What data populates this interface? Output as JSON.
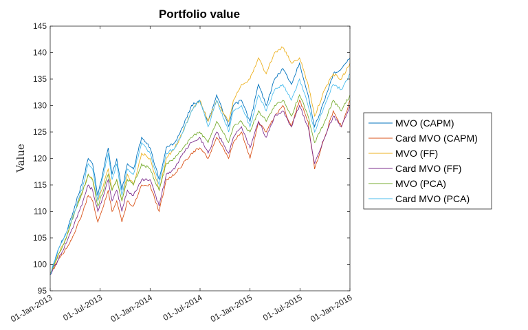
{
  "chart_data": {
    "type": "line",
    "title": "Portfolio value",
    "xlabel": "",
    "ylabel": "Value",
    "x_ticks": [
      "01-Jan-2013",
      "01-Jul-2013",
      "01-Jan-2014",
      "01-Jul-2014",
      "01-Jan-2015",
      "01-Jul-2015",
      "01-Jan-2016"
    ],
    "y_ticks": [
      95,
      100,
      105,
      110,
      115,
      120,
      125,
      130,
      135,
      140,
      145
    ],
    "xlim": [
      "2013-01-01",
      "2016-01-01"
    ],
    "ylim": [
      95,
      145
    ],
    "grid": false,
    "legend_position": "right",
    "series": [
      {
        "name": "MVO (CAPM)",
        "color": "#0072BD",
        "x": [
          "2013-01-01",
          "2013-02-01",
          "2013-03-01",
          "2013-04-01",
          "2013-05-01",
          "2013-05-20",
          "2013-06-05",
          "2013-06-24",
          "2013-07-15",
          "2013-08-01",
          "2013-08-15",
          "2013-09-01",
          "2013-09-20",
          "2013-10-10",
          "2013-11-01",
          "2013-12-01",
          "2014-01-01",
          "2014-02-03",
          "2014-03-01",
          "2014-04-01",
          "2014-05-01",
          "2014-06-01",
          "2014-07-01",
          "2014-08-01",
          "2014-09-01",
          "2014-10-15",
          "2014-11-01",
          "2014-12-01",
          "2015-01-01",
          "2015-02-01",
          "2015-03-01",
          "2015-04-01",
          "2015-05-01",
          "2015-06-01",
          "2015-07-01",
          "2015-08-01",
          "2015-08-25",
          "2015-10-01",
          "2015-11-01",
          "2015-12-01",
          "2016-01-01"
        ],
        "y": [
          98,
          103,
          106,
          111,
          116,
          120,
          119,
          113,
          118,
          122,
          117,
          120,
          114,
          119,
          118,
          124,
          122,
          116,
          122,
          123,
          126,
          130,
          131,
          127,
          132,
          126,
          130,
          131,
          127,
          134,
          130,
          135,
          137,
          134,
          138,
          132,
          126,
          131,
          136,
          137,
          139
        ]
      },
      {
        "name": "Card MVO (CAPM)",
        "color": "#D95319",
        "x": [
          "2013-01-01",
          "2013-02-01",
          "2013-03-01",
          "2013-04-01",
          "2013-05-01",
          "2013-05-20",
          "2013-06-05",
          "2013-06-24",
          "2013-07-15",
          "2013-08-01",
          "2013-08-15",
          "2013-09-01",
          "2013-09-20",
          "2013-10-10",
          "2013-11-01",
          "2013-12-01",
          "2014-01-01",
          "2014-02-03",
          "2014-03-01",
          "2014-04-01",
          "2014-05-01",
          "2014-06-01",
          "2014-07-01",
          "2014-08-01",
          "2014-09-01",
          "2014-10-15",
          "2014-11-01",
          "2014-12-01",
          "2015-01-01",
          "2015-02-01",
          "2015-03-01",
          "2015-04-01",
          "2015-05-01",
          "2015-06-01",
          "2015-07-01",
          "2015-08-01",
          "2015-08-25",
          "2015-10-01",
          "2015-11-01",
          "2015-12-01",
          "2016-01-01"
        ],
        "y": [
          98,
          101,
          103,
          106,
          110,
          113,
          112,
          108,
          111,
          114,
          110,
          112,
          108,
          112,
          111,
          115,
          115,
          110,
          116,
          117,
          119,
          121,
          122,
          120,
          124,
          120,
          123,
          125,
          120,
          127,
          125,
          128,
          130,
          126,
          131,
          127,
          118,
          124,
          129,
          126,
          131
        ]
      },
      {
        "name": "MVO (FF)",
        "color": "#EDB120",
        "x": [
          "2013-01-01",
          "2013-02-01",
          "2013-03-01",
          "2013-04-01",
          "2013-05-01",
          "2013-05-20",
          "2013-06-05",
          "2013-06-24",
          "2013-07-15",
          "2013-08-01",
          "2013-08-15",
          "2013-09-01",
          "2013-09-20",
          "2013-10-10",
          "2013-11-01",
          "2013-12-01",
          "2014-01-01",
          "2014-02-03",
          "2014-03-01",
          "2014-04-01",
          "2014-05-01",
          "2014-06-01",
          "2014-07-01",
          "2014-08-01",
          "2014-09-01",
          "2014-10-15",
          "2014-11-01",
          "2014-12-01",
          "2015-01-01",
          "2015-02-01",
          "2015-03-01",
          "2015-04-01",
          "2015-05-01",
          "2015-06-01",
          "2015-07-01",
          "2015-08-01",
          "2015-08-25",
          "2015-10-01",
          "2015-11-01",
          "2015-12-01",
          "2016-01-01"
        ],
        "y": [
          98,
          102,
          105,
          110,
          114,
          117,
          116,
          112,
          115,
          118,
          114,
          116,
          112,
          117,
          115,
          121,
          120,
          114,
          120,
          122,
          125,
          129,
          131,
          127,
          131,
          127,
          131,
          134,
          135,
          139,
          136,
          140,
          141,
          138,
          139,
          134,
          128,
          133,
          136,
          135,
          138
        ]
      },
      {
        "name": "Card MVO (FF)",
        "color": "#7E2F8E",
        "x": [
          "2013-01-01",
          "2013-02-01",
          "2013-03-01",
          "2013-04-01",
          "2013-05-01",
          "2013-05-20",
          "2013-06-05",
          "2013-06-24",
          "2013-07-15",
          "2013-08-01",
          "2013-08-15",
          "2013-09-01",
          "2013-09-20",
          "2013-10-10",
          "2013-11-01",
          "2013-12-01",
          "2014-01-01",
          "2014-02-03",
          "2014-03-01",
          "2014-04-01",
          "2014-05-01",
          "2014-06-01",
          "2014-07-01",
          "2014-08-01",
          "2014-09-01",
          "2014-10-15",
          "2014-11-01",
          "2014-12-01",
          "2015-01-01",
          "2015-02-01",
          "2015-03-01",
          "2015-04-01",
          "2015-05-01",
          "2015-06-01",
          "2015-07-01",
          "2015-08-01",
          "2015-08-25",
          "2015-10-01",
          "2015-11-01",
          "2015-12-01",
          "2016-01-01"
        ],
        "y": [
          98,
          101,
          104,
          108,
          112,
          115,
          114,
          110,
          113,
          116,
          112,
          114,
          110,
          114,
          113,
          116,
          116,
          111,
          117,
          118,
          121,
          123,
          124,
          121,
          125,
          121,
          124,
          126,
          122,
          127,
          124,
          128,
          129,
          126,
          130,
          126,
          119,
          124,
          128,
          126,
          130
        ]
      },
      {
        "name": "MVO (PCA)",
        "color": "#77AC30",
        "x": [
          "2013-01-01",
          "2013-02-01",
          "2013-03-01",
          "2013-04-01",
          "2013-05-01",
          "2013-05-20",
          "2013-06-05",
          "2013-06-24",
          "2013-07-15",
          "2013-08-01",
          "2013-08-15",
          "2013-09-01",
          "2013-09-20",
          "2013-10-10",
          "2013-11-01",
          "2013-12-01",
          "2014-01-01",
          "2014-02-03",
          "2014-03-01",
          "2014-04-01",
          "2014-05-01",
          "2014-06-01",
          "2014-07-01",
          "2014-08-01",
          "2014-09-01",
          "2014-10-15",
          "2014-11-01",
          "2014-12-01",
          "2015-01-01",
          "2015-02-01",
          "2015-03-01",
          "2015-04-01",
          "2015-05-01",
          "2015-06-01",
          "2015-07-01",
          "2015-08-01",
          "2015-08-25",
          "2015-10-01",
          "2015-11-01",
          "2015-12-01",
          "2016-01-01"
        ],
        "y": [
          98,
          102,
          105,
          110,
          114,
          117,
          116,
          111,
          114,
          117,
          114,
          116,
          112,
          116,
          115,
          119,
          118,
          114,
          119,
          120,
          122,
          124,
          125,
          123,
          127,
          123,
          126,
          127,
          125,
          129,
          127,
          130,
          131,
          128,
          132,
          128,
          123,
          127,
          131,
          129,
          132
        ]
      },
      {
        "name": "Card MVO (PCA)",
        "color": "#4DBEEE",
        "x": [
          "2013-01-01",
          "2013-02-01",
          "2013-03-01",
          "2013-04-01",
          "2013-05-01",
          "2013-05-20",
          "2013-06-05",
          "2013-06-24",
          "2013-07-15",
          "2013-08-01",
          "2013-08-15",
          "2013-09-01",
          "2013-09-20",
          "2013-10-10",
          "2013-11-01",
          "2013-12-01",
          "2014-01-01",
          "2014-02-03",
          "2014-03-01",
          "2014-04-01",
          "2014-05-01",
          "2014-06-01",
          "2014-07-01",
          "2014-08-01",
          "2014-09-01",
          "2014-10-15",
          "2014-11-01",
          "2014-12-01",
          "2015-01-01",
          "2015-02-01",
          "2015-03-01",
          "2015-04-01",
          "2015-05-01",
          "2015-06-01",
          "2015-07-01",
          "2015-08-01",
          "2015-08-25",
          "2015-10-01",
          "2015-11-01",
          "2015-12-01",
          "2016-01-01"
        ],
        "y": [
          98,
          103,
          106,
          110,
          115,
          119,
          118,
          112,
          117,
          121,
          116,
          119,
          113,
          118,
          117,
          123,
          121,
          115,
          121,
          122,
          125,
          129,
          131,
          126,
          131,
          125,
          129,
          130,
          126,
          132,
          129,
          133,
          134,
          131,
          135,
          130,
          125,
          130,
          134,
          133,
          136
        ]
      }
    ]
  }
}
